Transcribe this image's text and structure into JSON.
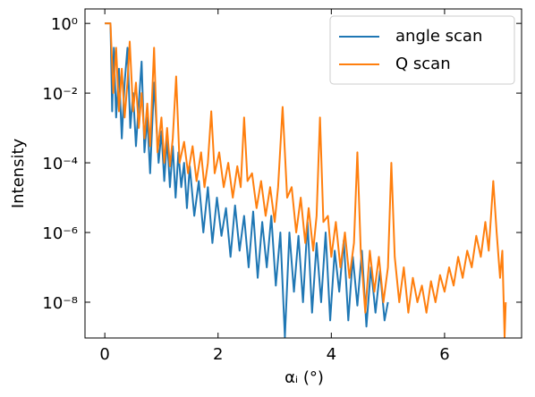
{
  "chart_data": {
    "type": "line",
    "x_label": "αᵢ (°)",
    "y_label": "Intensity",
    "yscale": "log",
    "legend": "upper right",
    "xlim": [
      -0.35,
      7.36
    ],
    "ylim": [
      9.4e-10,
      2.6
    ],
    "xticks": [
      0,
      2,
      4,
      6
    ],
    "yticks": [
      {
        "value": 1,
        "label": "10⁰"
      },
      {
        "value": 0.01,
        "label": "10⁻²"
      },
      {
        "value": 0.0001,
        "label": "10⁻⁴"
      },
      {
        "value": 1e-06,
        "label": "10⁻⁶"
      },
      {
        "value": 1e-08,
        "label": "10⁻⁸"
      }
    ],
    "series": [
      {
        "name": "angle scan",
        "color": "#1f77b4",
        "x": [
          0,
          0.05,
          0.1,
          0.13,
          0.16,
          0.2,
          0.25,
          0.3,
          0.35,
          0.4,
          0.45,
          0.5,
          0.55,
          0.6,
          0.65,
          0.7,
          0.75,
          0.8,
          0.87,
          0.95,
          1.0,
          1.05,
          1.1,
          1.15,
          1.2,
          1.25,
          1.3,
          1.35,
          1.4,
          1.45,
          1.5,
          1.58,
          1.66,
          1.74,
          1.82,
          1.9,
          1.98,
          2.06,
          2.14,
          2.22,
          2.3,
          2.38,
          2.46,
          2.54,
          2.62,
          2.7,
          2.78,
          2.86,
          2.94,
          3.02,
          3.1,
          3.18,
          3.26,
          3.34,
          3.42,
          3.5,
          3.58,
          3.66,
          3.74,
          3.82,
          3.9,
          3.98,
          4.06,
          4.14,
          4.22,
          4.3,
          4.38,
          4.46,
          4.54,
          4.62,
          4.7,
          4.78,
          4.86,
          4.94,
          5.0
        ],
        "values": [
          1,
          1,
          1,
          0.003,
          0.2,
          0.002,
          0.05,
          0.0005,
          0.02,
          0.2,
          0.001,
          0.01,
          0.0003,
          0.005,
          0.08,
          0.0002,
          0.002,
          5e-05,
          0.02,
          0.0001,
          0.0008,
          3e-05,
          0.0005,
          2e-05,
          0.0003,
          1e-05,
          0.0002,
          2e-05,
          0.0001,
          5e-06,
          8e-05,
          3e-06,
          3e-05,
          1e-06,
          2e-05,
          5e-07,
          1e-05,
          8e-07,
          5e-06,
          2e-07,
          6e-06,
          3e-07,
          3e-06,
          1e-07,
          4e-06,
          5e-08,
          2e-06,
          1e-07,
          3e-06,
          3e-08,
          1e-06,
          1e-09,
          1e-06,
          2e-08,
          8e-07,
          1e-08,
          2e-06,
          5e-09,
          5e-07,
          1e-08,
          1e-06,
          3e-09,
          3e-07,
          2e-08,
          6e-07,
          3e-09,
          2e-07,
          8e-09,
          3e-07,
          2e-09,
          1e-07,
          5e-09,
          8e-08,
          3e-09,
          1e-08
        ]
      },
      {
        "name": "Q scan",
        "color": "#ff7f0e",
        "x": [
          0,
          0.05,
          0.1,
          0.15,
          0.2,
          0.25,
          0.3,
          0.35,
          0.4,
          0.44,
          0.5,
          0.55,
          0.6,
          0.65,
          0.7,
          0.75,
          0.8,
          0.87,
          0.93,
          1.0,
          1.05,
          1.1,
          1.15,
          1.2,
          1.26,
          1.32,
          1.4,
          1.47,
          1.55,
          1.62,
          1.7,
          1.76,
          1.82,
          1.88,
          1.94,
          2.02,
          2.1,
          2.18,
          2.26,
          2.34,
          2.4,
          2.46,
          2.52,
          2.6,
          2.68,
          2.76,
          2.84,
          2.92,
          3.0,
          3.06,
          3.14,
          3.22,
          3.3,
          3.38,
          3.46,
          3.54,
          3.6,
          3.68,
          3.74,
          3.8,
          3.86,
          3.94,
          4.0,
          4.08,
          4.16,
          4.24,
          4.32,
          4.4,
          4.46,
          4.52,
          4.6,
          4.68,
          4.76,
          4.84,
          4.92,
          5.0,
          5.06,
          5.12,
          5.2,
          5.28,
          5.36,
          5.44,
          5.52,
          5.6,
          5.68,
          5.76,
          5.84,
          5.92,
          6.0,
          6.08,
          6.16,
          6.24,
          6.32,
          6.4,
          6.48,
          6.56,
          6.64,
          6.72,
          6.78,
          6.86,
          6.92,
          6.98,
          7.02,
          7.06,
          7.08
        ],
        "values": [
          1,
          1,
          1,
          0.01,
          0.2,
          0.003,
          0.05,
          0.002,
          0.02,
          0.3,
          0.003,
          0.02,
          0.001,
          0.01,
          0.0005,
          0.005,
          0.0003,
          0.2,
          0.0002,
          0.002,
          0.0001,
          0.001,
          8e-05,
          0.0005,
          0.03,
          0.0001,
          0.0004,
          5e-05,
          0.0003,
          3e-05,
          0.0002,
          2e-05,
          0.0001,
          0.003,
          5e-05,
          0.0002,
          2e-05,
          0.0001,
          1e-05,
          8e-05,
          2e-05,
          0.002,
          3e-05,
          5e-05,
          5e-06,
          3e-05,
          3e-06,
          2e-05,
          2e-06,
          2e-05,
          0.004,
          1e-05,
          2e-05,
          1e-06,
          1e-05,
          5e-07,
          5e-06,
          3e-07,
          3e-06,
          0.002,
          2e-06,
          3e-06,
          2e-07,
          2e-06,
          1e-07,
          1e-06,
          5e-08,
          5e-07,
          0.0002,
          3e-07,
          5e-09,
          3e-07,
          2e-08,
          2e-07,
          1e-08,
          1e-07,
          0.0001,
          2e-07,
          1e-08,
          1e-07,
          5e-09,
          5e-08,
          1e-08,
          3e-08,
          5e-09,
          4e-08,
          1e-08,
          6e-08,
          2e-08,
          1e-07,
          3e-08,
          2e-07,
          5e-08,
          3e-07,
          1e-07,
          8e-07,
          2e-07,
          2e-06,
          3e-07,
          3e-05,
          1e-06,
          5e-08,
          3e-07,
          1e-09,
          1e-08
        ]
      }
    ]
  }
}
